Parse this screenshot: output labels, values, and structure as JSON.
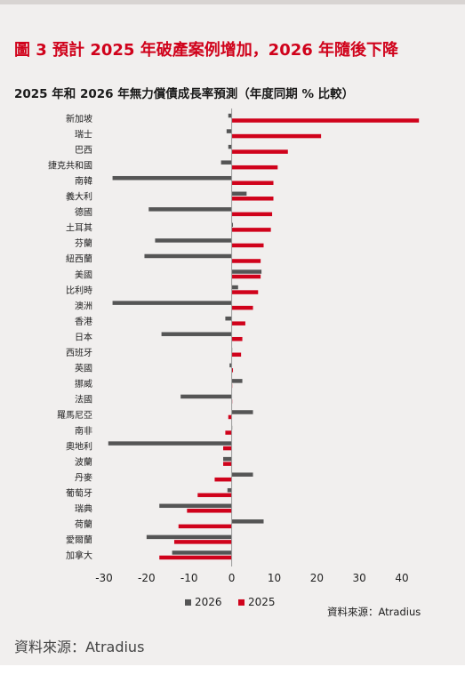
{
  "figure_title": "圖 3 預計 2025 年破產案例增加，2026 年隨後下降",
  "chart_source": "資料來源：Atradius",
  "page_source": "資料來源：Atradius",
  "colors": {
    "series_2026": "#555555",
    "series_2025": "#d0021b",
    "axis": "#9a9a9a",
    "background": "#f1efee"
  },
  "chart_data": {
    "type": "bar",
    "orientation": "horizontal",
    "title": "2025 年和 2026 年無力償債成長率預測（年度同期 % 比較）",
    "categories": [
      "新加坡",
      "瑞士",
      "巴西",
      "捷克共和國",
      "南韓",
      "義大利",
      "德國",
      "土耳其",
      "芬蘭",
      "紐西蘭",
      "美國",
      "比利時",
      "澳洲",
      "香港",
      "日本",
      "西班牙",
      "英國",
      "挪威",
      "法國",
      "羅馬尼亞",
      "南非",
      "奧地利",
      "波蘭",
      "丹麥",
      "葡萄牙",
      "瑞典",
      "荷蘭",
      "愛爾蘭",
      "加拿大"
    ],
    "series": [
      {
        "name": "2026",
        "values": [
          -0.8,
          -1.2,
          -0.8,
          -2.5,
          -28,
          3.5,
          -19.5,
          0.3,
          -18,
          -20.5,
          7,
          1.5,
          -28,
          -1.5,
          -16.5,
          0,
          -0.5,
          2.5,
          -12,
          5,
          0,
          -29,
          -2,
          5,
          -1,
          -17,
          7.5,
          -20,
          -14
        ]
      },
      {
        "name": "2025",
        "values": [
          44,
          21,
          13.2,
          10.8,
          9.8,
          9.8,
          9.5,
          9.2,
          7.5,
          6.8,
          6.8,
          6.2,
          5,
          3.2,
          2.5,
          2.2,
          0.3,
          0,
          0,
          -0.8,
          -1.5,
          -2,
          -2,
          -4,
          -8,
          -10.5,
          -12.5,
          -13.5,
          -17
        ]
      }
    ],
    "xlim": [
      -30,
      45
    ],
    "xticks": [
      -30,
      -20,
      -10,
      0,
      10,
      20,
      30,
      40
    ],
    "legend_position": "bottom",
    "grid": false
  }
}
